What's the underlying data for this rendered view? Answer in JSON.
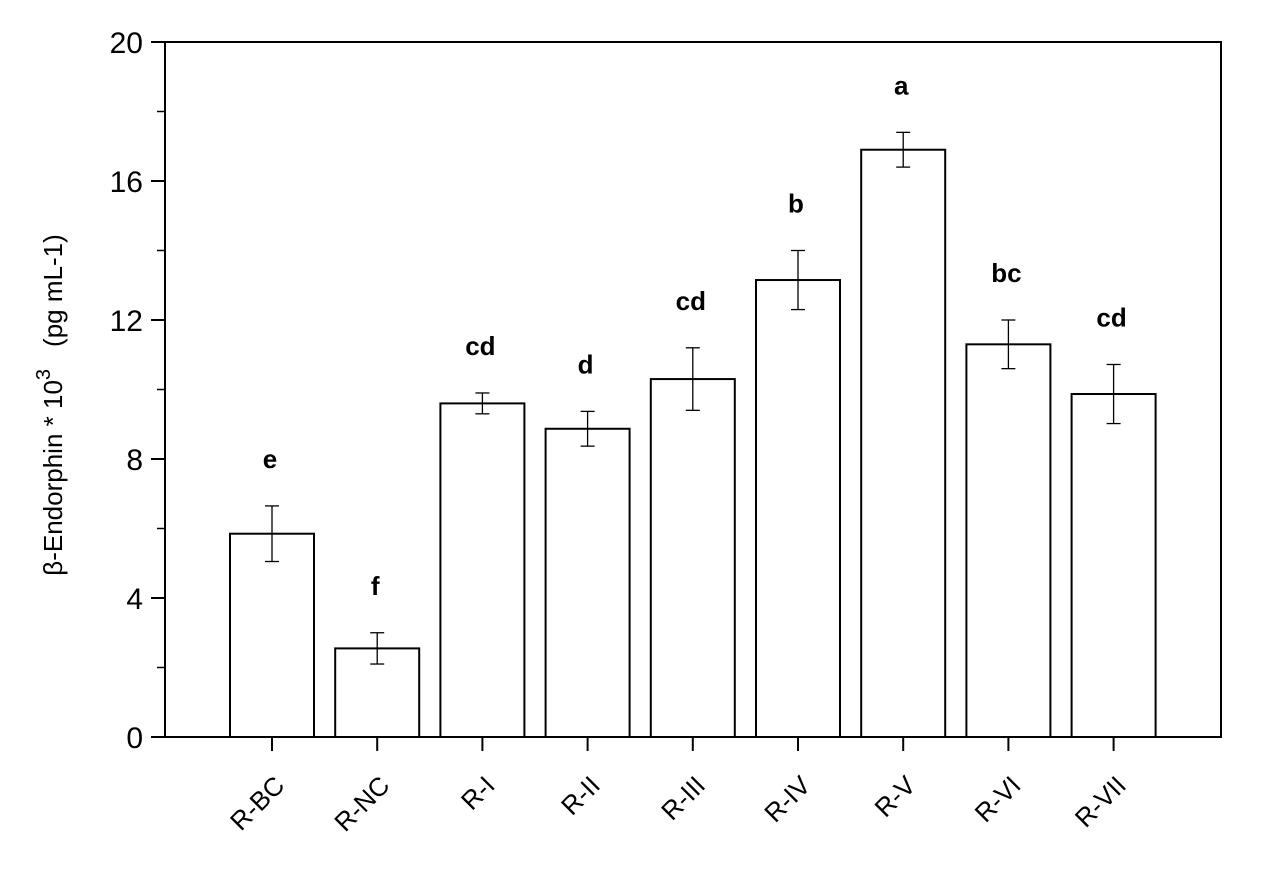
{
  "chart_data": {
    "type": "bar",
    "categories": [
      "R-BC",
      "R-NC",
      "R-I",
      "R-II",
      "R-III",
      "R-IV",
      "R-V",
      "R-VI",
      "R-VII"
    ],
    "values": [
      5.85,
      2.55,
      9.6,
      8.87,
      10.3,
      13.15,
      16.9,
      11.3,
      9.87
    ],
    "errors": [
      0.8,
      0.45,
      0.3,
      0.5,
      0.9,
      0.85,
      0.5,
      0.7,
      0.85
    ],
    "significance_letters": [
      "e",
      "f",
      "cd",
      "d",
      "cd",
      "b",
      "a",
      "bc",
      "cd"
    ],
    "ylabel": {
      "prefix": "β-Endorphin * 10",
      "superscript": "3",
      "units": "(pg mL-1)"
    },
    "xlabel": "",
    "ylim": [
      0,
      20
    ],
    "yticks": [
      0,
      4,
      8,
      12,
      16,
      20
    ],
    "grid": false,
    "bar_fill": "#ffffff",
    "bar_stroke": "#000000"
  }
}
